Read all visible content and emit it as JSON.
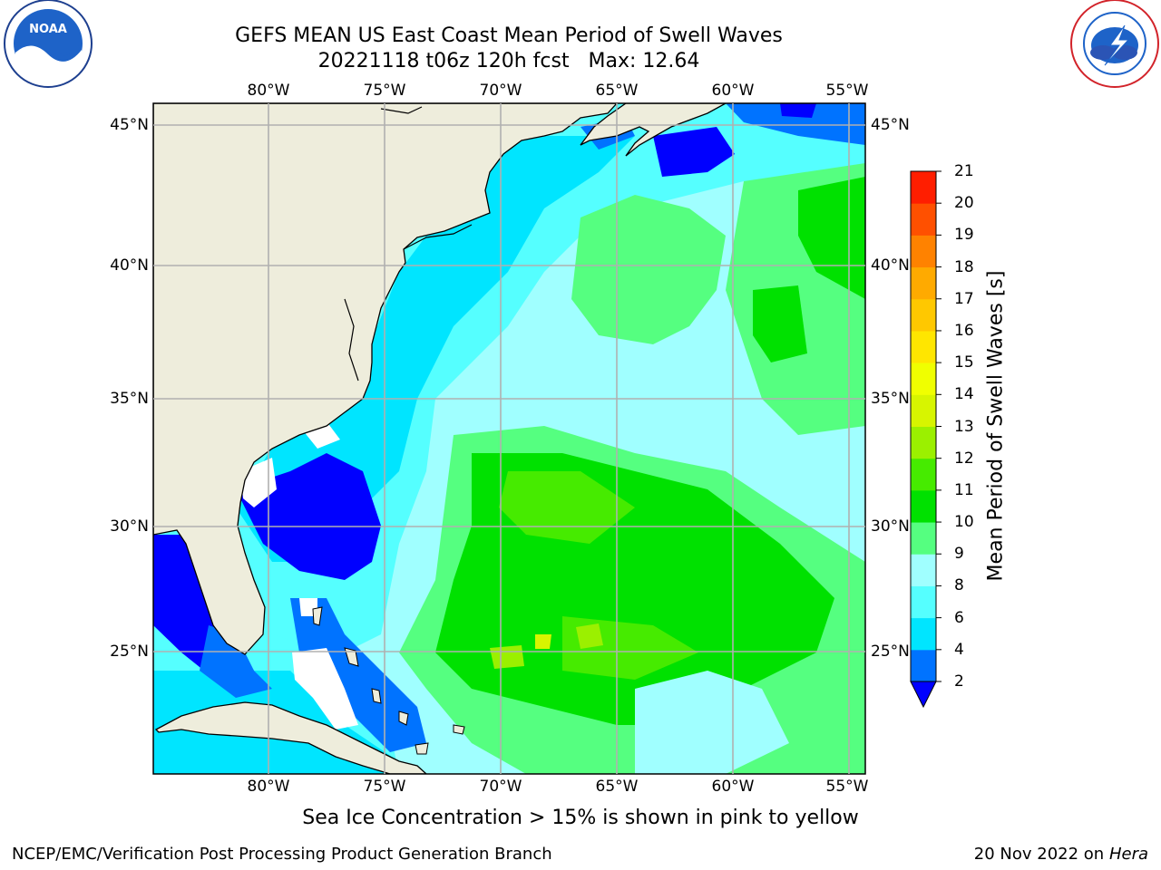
{
  "title": {
    "line1": "GEFS MEAN US East Coast Mean Period of Swell Waves",
    "line2": "20221118 t06z 120h fcst   Max: 12.64"
  },
  "map": {
    "lon_labels": [
      "80°W",
      "75°W",
      "70°W",
      "65°W",
      "60°W",
      "55°W"
    ],
    "lat_labels": [
      "45°N",
      "40°N",
      "35°N",
      "30°N",
      "25°N"
    ],
    "lon_range": [
      "85°W",
      "54.5°W"
    ],
    "lat_range": [
      "20.5°N",
      "46°N"
    ],
    "land_color": "#eeeddc",
    "grid": true
  },
  "colorbar": {
    "label": "Mean Period of Swell Waves [s]",
    "ticks": [
      "2",
      "4",
      "6",
      "8",
      "9",
      "10",
      "11",
      "12",
      "13",
      "14",
      "15",
      "16",
      "17",
      "18",
      "19",
      "20",
      "21"
    ],
    "colors": [
      "#0073ff",
      "#00e5ff",
      "#55ffff",
      "#a0ffff",
      "#55ff80",
      "#00e100",
      "#46eb00",
      "#9bf000",
      "#d7f500",
      "#f0ff00",
      "#ffe600",
      "#ffc800",
      "#ffaa00",
      "#ff8200",
      "#ff5000",
      "#ff1e00"
    ],
    "under_color": "#0000ff",
    "extend": "min"
  },
  "note": "Sea Ice Concentration > 15% is shown in pink to yellow",
  "footer": {
    "left": "NCEP/EMC/Verification Post Processing Product Generation Branch",
    "right_date": "20 Nov 2022 on",
    "right_machine": "Hera"
  },
  "logos": {
    "noaa": "NOAA",
    "nws": "NATIONAL WEATHER SERVICE",
    "noaa_ring": "NATIONAL OCEANIC AND ATMOSPHERIC ADMINISTRATION · U.S. DEPARTMENT OF COMMERCE"
  }
}
